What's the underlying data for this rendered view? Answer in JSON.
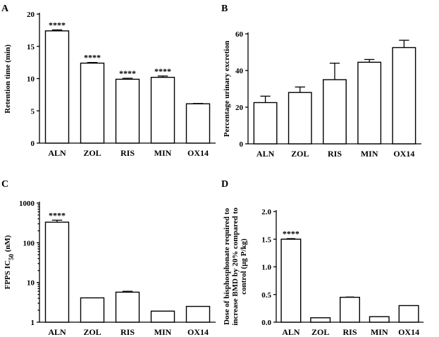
{
  "chart_data": [
    {
      "panel": "A",
      "type": "bar",
      "categories": [
        "ALN",
        "ZOL",
        "RIS",
        "MIN",
        "OX14"
      ],
      "values": [
        17.4,
        12.4,
        9.9,
        10.2,
        6.1
      ],
      "errors": [
        0.15,
        0.1,
        0.15,
        0.2,
        0.05
      ],
      "annotations": [
        "****",
        "****",
        "****",
        "****",
        ""
      ],
      "ylabel": "Retention  time (min)",
      "ylim": [
        0,
        20
      ],
      "yticks": [
        0,
        5,
        10,
        15,
        20
      ],
      "scale": "linear"
    },
    {
      "panel": "B",
      "type": "bar",
      "categories": [
        "ALN",
        "ZOL",
        "RIS",
        "MIN",
        "OX14"
      ],
      "values": [
        22.5,
        28,
        35,
        44.5,
        52.5
      ],
      "errors": [
        3.5,
        3,
        9,
        1.5,
        4
      ],
      "annotations": [
        "",
        "",
        "",
        "",
        ""
      ],
      "ylabel": "Percentage urinary excretion",
      "ylim": [
        0,
        60
      ],
      "yticks": [
        0,
        20,
        40,
        60
      ],
      "scale": "linear"
    },
    {
      "panel": "C",
      "type": "bar",
      "categories": [
        "ALN",
        "ZOL",
        "RIS",
        "MIN",
        "OX14"
      ],
      "values": [
        330,
        4.1,
        5.7,
        1.9,
        2.5
      ],
      "errors": [
        40,
        0,
        0.3,
        0,
        0
      ],
      "annotations": [
        "****",
        "",
        "",
        "",
        ""
      ],
      "ylabel": "FPPS IC",
      "ylabel_sub": "50",
      "ylabel_unit": " (nM)",
      "ylim": [
        1,
        1000
      ],
      "yticks": [
        1,
        10,
        100,
        1000
      ],
      "scale": "log"
    },
    {
      "panel": "D",
      "type": "bar",
      "categories": [
        "ALN",
        "ZOL",
        "RIS",
        "MIN",
        "OX14"
      ],
      "values": [
        1.5,
        0.08,
        0.45,
        0.1,
        0.3
      ],
      "errors": [
        0.01,
        0,
        0.005,
        0,
        0
      ],
      "annotations": [
        "****",
        "",
        "",
        "",
        ""
      ],
      "ylabel_lines": [
        "Dose of bisphosphonate required to",
        "increase BMD by 20% compared  to",
        "control (µg P/kg)"
      ],
      "ylim": [
        0,
        2
      ],
      "yticks": [
        0,
        0.5,
        1,
        1.5,
        2
      ],
      "ytick_labels": [
        "0.0",
        "0.5",
        "1.0",
        "1.5",
        "2.0"
      ],
      "scale": "linear"
    }
  ]
}
